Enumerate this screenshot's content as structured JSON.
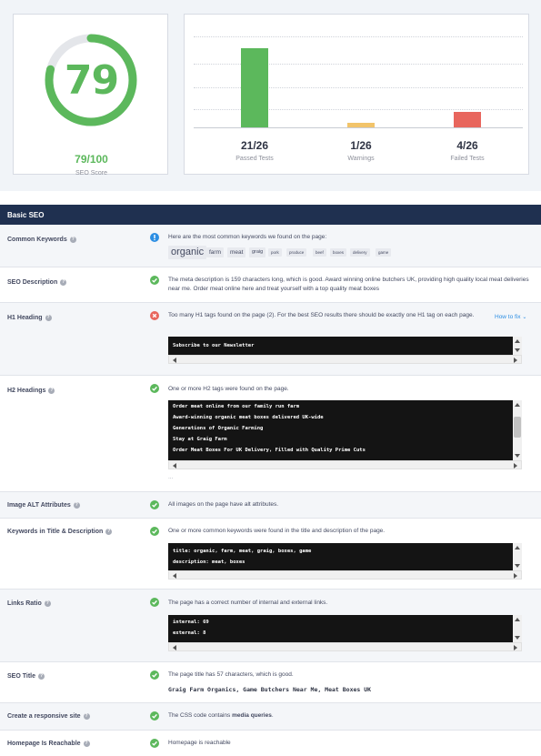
{
  "score": {
    "value": "79",
    "fraction": "79/100",
    "label": "SEO Score",
    "percent": 79
  },
  "tests": {
    "max": 26,
    "items": [
      {
        "value": "21/26",
        "label": "Passed Tests",
        "count": 21,
        "color": "#5cb85c"
      },
      {
        "value": "1/26",
        "label": "Warnings",
        "count": 1,
        "color": "#f2c46a"
      },
      {
        "value": "4/26",
        "label": "Failed Tests",
        "count": 4,
        "color": "#e8665d"
      }
    ]
  },
  "section_title": "Basic SEO",
  "rows": {
    "common_keywords": {
      "label": "Common Keywords",
      "message": "Here are the most common keywords we found on the page:",
      "keywords": [
        "organic",
        "farm",
        "meat",
        "graig",
        "pork",
        "produce",
        "beef",
        "boxes",
        "delivery",
        "game"
      ]
    },
    "seo_description": {
      "label": "SEO Description",
      "message": "The meta description is 159 characters long, which is good. Award winning online butchers UK, providing high quality local meat deliveries near me. Order meat online here and treat yourself with a top quality meat boxes"
    },
    "h1_heading": {
      "label": "H1 Heading",
      "message": "Too many H1 tags found on the page (2). For the best SEO results there should be exactly one H1 tag on each page.",
      "how_to_fix": "How to fix",
      "code": [
        "Subscribe to our Newsletter"
      ]
    },
    "h2_headings": {
      "label": "H2 Headings",
      "message": "One or more H2 tags were found on the page.",
      "code": [
        "Order meat online from our family run farm",
        "Award-winning organic meat boxes delivered UK-wide",
        "Generations of Organic Farming",
        "Stay at Graig Farm",
        "Order Meat Boxes For UK Delivery, Filled with Quality Prime Cuts"
      ],
      "more": "..."
    },
    "image_alt": {
      "label": "Image ALT Attributes",
      "message": "All images on the page have alt attributes."
    },
    "keywords_title_desc": {
      "label": "Keywords in Title & Description",
      "message": "One or more common keywords were found in the title and description of the page.",
      "code": [
        "title: organic, farm, meat, graig, boxes, game",
        "description: meat, boxes"
      ]
    },
    "links_ratio": {
      "label": "Links Ratio",
      "message": "The page has a correct number of internal and external links.",
      "code": [
        "internal: 69",
        "external: 8"
      ]
    },
    "seo_title": {
      "label": "SEO Title",
      "message": "The page title has 57 characters, which is good.",
      "title_value": "Graig Farm Organics, Game Butchers Near Me, Meat Boxes UK"
    },
    "responsive": {
      "label": "Create a responsive site",
      "message_prefix": "The CSS code contains ",
      "message_strong": "media queries",
      "message_suffix": "."
    },
    "reachable": {
      "label": "Homepage Is Reachable",
      "message": "Homepage is reachable"
    }
  }
}
